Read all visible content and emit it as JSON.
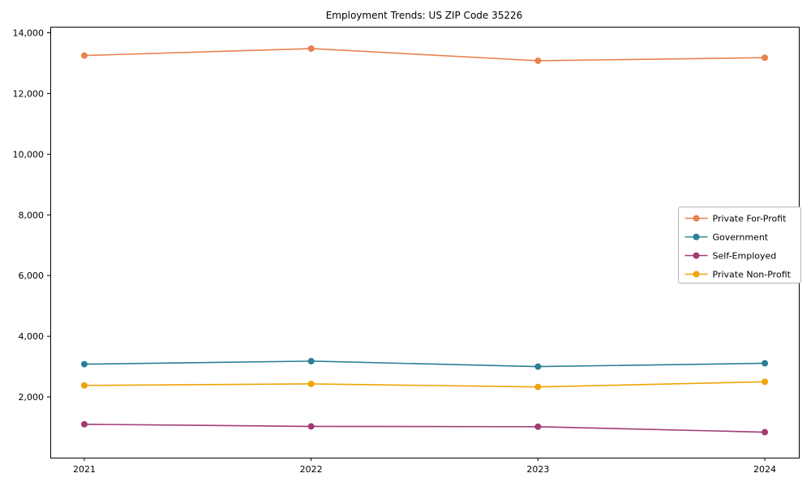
{
  "chart_data": {
    "type": "line",
    "title": "Employment Trends: US ZIP Code 35226",
    "xlabel": "",
    "ylabel": "",
    "x": [
      2021,
      2022,
      2023,
      2024
    ],
    "x_labels": [
      "2021",
      "2022",
      "2023",
      "2024"
    ],
    "series": [
      {
        "name": "Private For-Profit",
        "color": "#e8814d",
        "values": [
          13250,
          13480,
          13080,
          13180
        ]
      },
      {
        "name": "Government",
        "color": "#2a7f93",
        "values": [
          3080,
          3180,
          3000,
          3110
        ]
      },
      {
        "name": "Self-Employed",
        "color": "#a23b72",
        "values": [
          1100,
          1030,
          1020,
          840
        ]
      },
      {
        "name": "Private Non-Profit",
        "color": "#eda409",
        "values": [
          2380,
          2430,
          2330,
          2500
        ]
      }
    ],
    "ylim": [
      0,
      14200
    ],
    "yticks": [
      2000,
      4000,
      6000,
      8000,
      10000,
      12000,
      14000
    ],
    "ytick_labels": [
      "2,000",
      "4,000",
      "6,000",
      "8,000",
      "10,000",
      "12,000",
      "14,000"
    ],
    "xlim": [
      2020.85,
      2024.15
    ],
    "grid": false,
    "marker": "circle",
    "legend_position": "center right",
    "legend_entries": [
      "Private For-Profit",
      "Government",
      "Self-Employed",
      "Private Non-Profit"
    ]
  },
  "style": {
    "axis_color": "#000000",
    "legend_border_color": "#b3b3b3",
    "background": "#ffffff"
  }
}
